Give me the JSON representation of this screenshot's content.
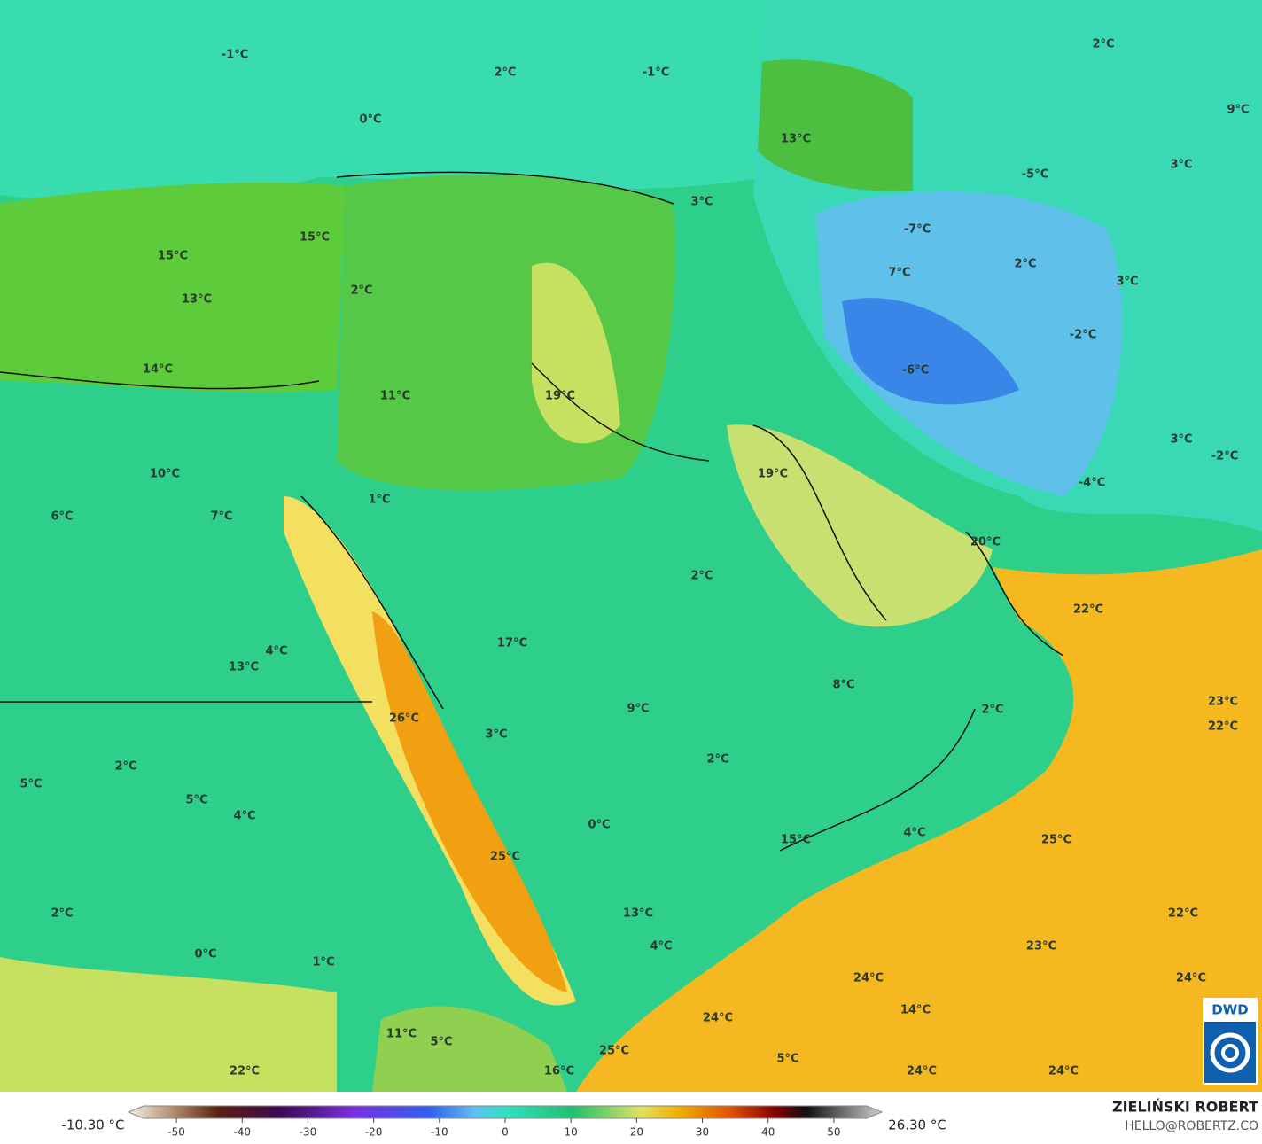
{
  "map_labels": [
    "-1°C",
    "2°C",
    "-1°C",
    "0°C",
    "13°C",
    "2°C",
    "9°C",
    "3°C",
    "-5°C",
    "3°C",
    "-7°C",
    "15°C",
    "15°C",
    "2°C",
    "7°C",
    "3°C",
    "2°C",
    "13°C",
    "-2°C",
    "14°C",
    "-6°C",
    "11°C",
    "19°C",
    "3°C",
    "19°C",
    "-2°C",
    "10°C",
    "-4°C",
    "1°C",
    "6°C",
    "7°C",
    "20°C",
    "2°C",
    "22°C",
    "17°C",
    "4°C",
    "13°C",
    "8°C",
    "23°C",
    "9°C",
    "2°C",
    "26°C",
    "22°C",
    "3°C",
    "2°C",
    "2°C",
    "5°C",
    "5°C",
    "4°C",
    "0°C",
    "4°C",
    "15°C",
    "25°C",
    "25°C",
    "13°C",
    "22°C",
    "2°C",
    "4°C",
    "23°C",
    "0°C",
    "1°C",
    "24°C",
    "24°C",
    "14°C",
    "24°C",
    "11°C",
    "5°C",
    "25°C",
    "5°C",
    "22°C",
    "16°C",
    "24°C",
    "24°C"
  ],
  "colorbar": {
    "min_label": "-10.30 °C",
    "max_label": "26.30 °C",
    "range": [
      -55,
      55
    ],
    "ticks": [
      -50,
      -40,
      -30,
      -20,
      -10,
      0,
      10,
      20,
      30,
      40,
      50
    ]
  },
  "credits": {
    "author": "ZIELIŃSKI ROBERT",
    "contact": "HELLO@ROBERTZ.CO",
    "logo": "DWD"
  }
}
